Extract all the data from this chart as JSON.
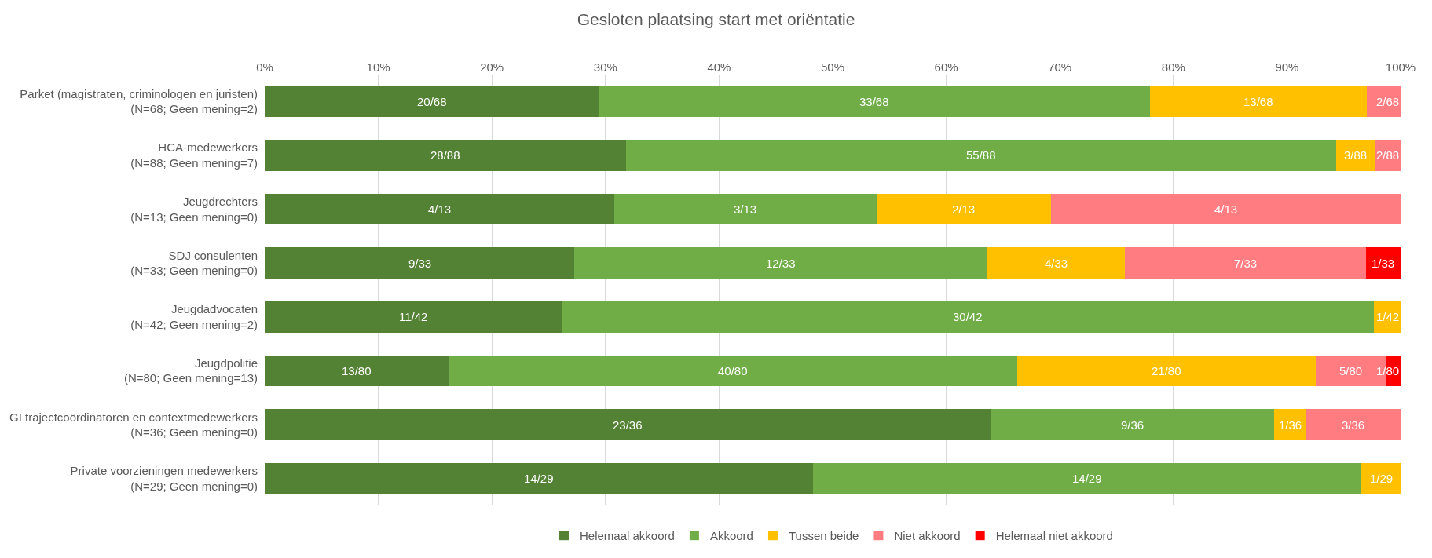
{
  "chart_data": {
    "type": "bar",
    "orientation": "horizontal",
    "stacked": true,
    "title": "Gesloten plaatsing start met oriëntatie",
    "categories": [
      "Parket (magistraten, criminologen en juristen)\n(N=68; Geen mening=2)",
      "HCA-medewerkers\n(N=88; Geen mening=7)",
      "Jeugdrechters\n(N=13; Geen mening=0)",
      "SDJ consulenten\n(N=33; Geen mening=0)",
      "Jeugdadvocaten\n(N=42; Geen mening=2)",
      "Jeugdpolitie\n(N=80; Geen mening=13)",
      "GI trajectcoördinatoren en contextmedewerkers\n(N=36; Geen mening=0)",
      "Private voorzieningen medewerkers\n(N=29; Geen mening=0)"
    ],
    "series": [
      {
        "name": "Helemaal akkoord",
        "color": "#548235",
        "values": [
          29.41,
          31.82,
          30.77,
          27.27,
          26.19,
          16.25,
          63.89,
          48.28
        ],
        "value_labels": [
          "20/68",
          "28/88",
          "4/13",
          "9/33",
          "11/42",
          "13/80",
          "23/36",
          "14/29"
        ]
      },
      {
        "name": "Akkoord",
        "color": "#70ad47",
        "values": [
          48.53,
          62.5,
          23.08,
          36.36,
          71.43,
          50,
          25,
          48.28
        ],
        "value_labels": [
          "33/68",
          "55/88",
          "3/13",
          "12/33",
          "30/42",
          "40/80",
          "9/36",
          "14/29"
        ]
      },
      {
        "name": "Tussen beide",
        "color": "#ffc000",
        "values": [
          19.12,
          3.41,
          15.38,
          12.12,
          2.38,
          26.25,
          2.78,
          3.45
        ],
        "value_labels": [
          "13/68",
          "3/88",
          "2/13",
          "4/33",
          "1/42",
          "21/80",
          "1/36",
          "1/29"
        ]
      },
      {
        "name": "Niet akkoord",
        "color": "#ff7c80",
        "values": [
          2.94,
          2.27,
          30.77,
          21.21,
          null,
          6.25,
          8.33,
          null
        ],
        "value_labels": [
          "2/68",
          "2/88",
          "4/13",
          "7/33",
          null,
          "5/80",
          "3/36",
          null
        ]
      },
      {
        "name": "Helemaal niet akkoord",
        "color": "#ff0000",
        "values": [
          null,
          null,
          null,
          3.03,
          null,
          1.25,
          null,
          null
        ],
        "value_labels": [
          null,
          null,
          null,
          "1/33",
          null,
          "1/80",
          null,
          null
        ]
      }
    ],
    "xlim": [
      0,
      100
    ],
    "xticks": [
      {
        "value": 0,
        "label": "0%"
      },
      {
        "value": 10,
        "label": "10%"
      },
      {
        "value": 20,
        "label": "20%"
      },
      {
        "value": 30,
        "label": "30%"
      },
      {
        "value": 40,
        "label": "40%"
      },
      {
        "value": 50,
        "label": "50%"
      },
      {
        "value": 60,
        "label": "60%"
      },
      {
        "value": 70,
        "label": "70%"
      },
      {
        "value": 80,
        "label": "80%"
      },
      {
        "value": 90,
        "label": "90%"
      },
      {
        "value": 100,
        "label": "100%"
      }
    ],
    "grid": "x",
    "legend": "bottom"
  }
}
